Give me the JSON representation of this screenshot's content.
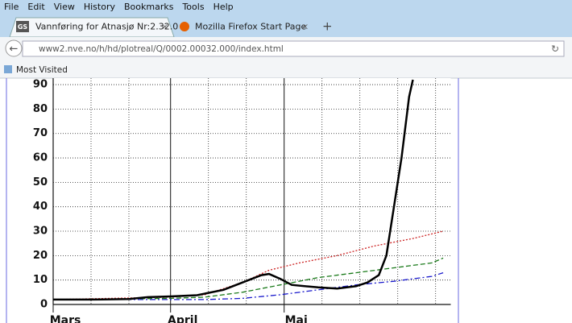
{
  "menu": [
    "File",
    "Edit",
    "View",
    "History",
    "Bookmarks",
    "Tools",
    "Help"
  ],
  "tabs": [
    {
      "icon": "GS",
      "title": "Vannføring for Atnasjø Nr:2.32.0"
    },
    {
      "title": "Mozilla Firefox Start Page"
    }
  ],
  "url": "www2.nve.no/h/hd/plotreal/Q/0002.00032.000/index.html",
  "bookmarks": [
    "Most Visited"
  ],
  "chart_data": {
    "type": "line",
    "xlim": [
      0,
      105
    ],
    "ylim": [
      0,
      92
    ],
    "xticks": [
      {
        "value": 0,
        "label": "Mars"
      },
      {
        "value": 31,
        "label": "April"
      },
      {
        "value": 61,
        "label": "Mai"
      }
    ],
    "xminor": [
      10,
      20,
      41,
      51,
      71,
      81,
      91,
      101
    ],
    "yticks": [
      0,
      10,
      20,
      30,
      40,
      50,
      60,
      70,
      80,
      90
    ],
    "grid": true,
    "series": [
      {
        "color": "#1a1acc",
        "dash": "7 3 2 3",
        "x": [
          0,
          31,
          40,
          50,
          60,
          70,
          80,
          90,
          100,
          103
        ],
        "values": [
          2,
          2,
          2,
          2.5,
          4,
          6,
          8,
          9.5,
          11.5,
          13
        ]
      },
      {
        "color": "#1a7a1a",
        "dash": "6 3",
        "x": [
          0,
          31,
          40,
          50,
          60,
          70,
          80,
          90,
          100,
          103
        ],
        "values": [
          2,
          2.5,
          3,
          5,
          8,
          11,
          13,
          15,
          17,
          19
        ]
      },
      {
        "color": "#cc2222",
        "dash": "2 2",
        "x": [
          0,
          31,
          40,
          50,
          57,
          65,
          75,
          85,
          95,
          103
        ],
        "values": [
          2,
          3,
          4,
          9,
          14,
          17,
          20,
          24,
          27,
          30
        ]
      },
      {
        "color": "#000000",
        "dash": "none",
        "x": [
          0,
          10,
          20,
          25,
          31,
          38,
          45,
          50,
          55,
          57,
          60,
          63,
          70,
          75,
          80,
          83,
          86,
          88,
          90,
          92,
          94,
          95
        ],
        "values": [
          2,
          2,
          2.2,
          3,
          3.3,
          3.8,
          6,
          9,
          12,
          12.5,
          10.5,
          8,
          7,
          6.5,
          7.5,
          9,
          12,
          20,
          40,
          60,
          85,
          92
        ]
      }
    ]
  }
}
